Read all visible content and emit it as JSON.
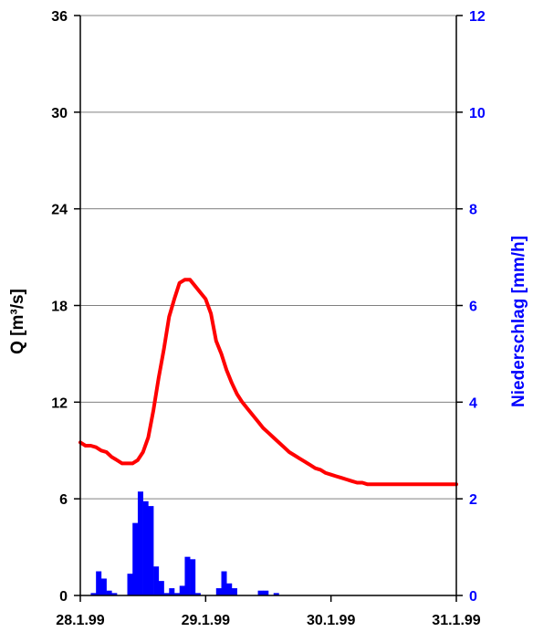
{
  "chart_data": {
    "type": "line",
    "title": "",
    "xlabel": "",
    "ylabel_left": "Q [m³/s]",
    "ylabel_right": "Niederschlag [mm/h]",
    "xlim": [
      "1999-01-28",
      "1999-01-31"
    ],
    "ylim_left": [
      0,
      36
    ],
    "ylim_right": [
      0,
      12
    ],
    "x_tick_labels": [
      "28.1.99",
      "29.1.99",
      "30.1.99",
      "31.1.99"
    ],
    "y_left_tick_labels": [
      "0",
      "6",
      "12",
      "18",
      "24",
      "30",
      "36"
    ],
    "y_right_tick_labels": [
      "0",
      "2",
      "4",
      "6",
      "8",
      "10",
      "12"
    ],
    "grid": "horizontal",
    "colors": {
      "discharge": "#ff0000",
      "precipitation": "#0000ff",
      "right_axis_text": "#0000ff",
      "axis": "#000000",
      "grid": "#808080"
    },
    "series": [
      {
        "axis": "left",
        "kind": "line",
        "x": [
          "1999-01-28 00:00",
          "1999-01-28 01:00",
          "1999-01-28 02:00",
          "1999-01-28 03:00",
          "1999-01-28 04:00",
          "1999-01-28 05:00",
          "1999-01-28 06:00",
          "1999-01-28 07:00",
          "1999-01-28 08:00",
          "1999-01-28 09:00",
          "1999-01-28 10:00",
          "1999-01-28 11:00",
          "1999-01-28 12:00",
          "1999-01-28 13:00",
          "1999-01-28 14:00",
          "1999-01-28 15:00",
          "1999-01-28 16:00",
          "1999-01-28 17:00",
          "1999-01-28 18:00",
          "1999-01-28 19:00",
          "1999-01-28 20:00",
          "1999-01-28 21:00",
          "1999-01-28 22:00",
          "1999-01-28 23:00",
          "1999-01-29 00:00",
          "1999-01-29 01:00",
          "1999-01-29 02:00",
          "1999-01-29 03:00",
          "1999-01-29 04:00",
          "1999-01-29 05:00",
          "1999-01-29 06:00",
          "1999-01-29 07:00",
          "1999-01-29 08:00",
          "1999-01-29 09:00",
          "1999-01-29 10:00",
          "1999-01-29 11:00",
          "1999-01-29 12:00",
          "1999-01-29 13:00",
          "1999-01-29 14:00",
          "1999-01-29 15:00",
          "1999-01-29 16:00",
          "1999-01-29 17:00",
          "1999-01-29 18:00",
          "1999-01-29 19:00",
          "1999-01-29 20:00",
          "1999-01-29 21:00",
          "1999-01-29 22:00",
          "1999-01-29 23:00",
          "1999-01-30 00:00",
          "1999-01-30 01:00",
          "1999-01-30 02:00",
          "1999-01-30 03:00",
          "1999-01-30 04:00",
          "1999-01-30 05:00",
          "1999-01-30 06:00",
          "1999-01-30 07:00",
          "1999-01-30 08:00",
          "1999-01-30 09:00",
          "1999-01-30 10:00",
          "1999-01-30 11:00",
          "1999-01-30 12:00",
          "1999-01-30 13:00",
          "1999-01-30 14:00",
          "1999-01-30 15:00",
          "1999-01-30 16:00",
          "1999-01-30 17:00",
          "1999-01-30 18:00",
          "1999-01-30 19:00",
          "1999-01-30 20:00",
          "1999-01-30 21:00",
          "1999-01-30 22:00",
          "1999-01-30 23:00",
          "1999-01-31 00:00"
        ],
        "y": [
          9.5,
          9.3,
          9.3,
          9.2,
          9.0,
          8.9,
          8.6,
          8.4,
          8.2,
          8.2,
          8.2,
          8.4,
          8.9,
          9.8,
          11.5,
          13.5,
          15.3,
          17.3,
          18.4,
          19.4,
          19.6,
          19.6,
          19.2,
          18.8,
          18.4,
          17.5,
          15.8,
          15.0,
          14.0,
          13.2,
          12.5,
          12.0,
          11.6,
          11.2,
          10.8,
          10.4,
          10.1,
          9.8,
          9.5,
          9.2,
          8.9,
          8.7,
          8.5,
          8.3,
          8.1,
          7.9,
          7.8,
          7.6,
          7.5,
          7.4,
          7.3,
          7.2,
          7.1,
          7.0,
          7.0,
          6.9,
          6.9,
          6.9,
          6.9,
          6.9,
          6.9,
          6.9,
          6.9,
          6.9,
          6.9,
          6.9,
          6.9,
          6.9,
          6.9,
          6.9,
          6.9,
          6.9,
          6.9
        ]
      },
      {
        "axis": "right",
        "kind": "bar",
        "x": [
          "1999-01-28 02:00",
          "1999-01-28 03:00",
          "1999-01-28 04:00",
          "1999-01-28 05:00",
          "1999-01-28 06:00",
          "1999-01-28 07:00",
          "1999-01-28 08:00",
          "1999-01-28 09:00",
          "1999-01-28 10:00",
          "1999-01-28 11:00",
          "1999-01-28 12:00",
          "1999-01-28 13:00",
          "1999-01-28 14:00",
          "1999-01-28 15:00",
          "1999-01-28 16:00",
          "1999-01-28 17:00",
          "1999-01-28 18:00",
          "1999-01-28 19:00",
          "1999-01-28 20:00",
          "1999-01-28 21:00",
          "1999-01-28 22:00",
          "1999-01-28 23:00",
          "1999-01-29 00:00",
          "1999-01-29 01:00",
          "1999-01-29 02:00",
          "1999-01-29 03:00",
          "1999-01-29 04:00",
          "1999-01-29 05:00",
          "1999-01-29 06:00",
          "1999-01-29 07:00",
          "1999-01-29 08:00",
          "1999-01-29 09:00",
          "1999-01-29 10:00",
          "1999-01-29 11:00",
          "1999-01-29 12:00",
          "1999-01-29 13:00"
        ],
        "y": [
          0.05,
          0.5,
          0.35,
          0.1,
          0.05,
          0.0,
          0.0,
          0.45,
          1.5,
          2.15,
          1.95,
          1.85,
          0.6,
          0.3,
          0.05,
          0.15,
          0.05,
          0.2,
          0.8,
          0.75,
          0.05,
          0.0,
          0.0,
          0.0,
          0.15,
          0.5,
          0.25,
          0.15,
          0.0,
          0.0,
          0.0,
          0.0,
          0.1,
          0.1,
          0.0,
          0.05
        ]
      }
    ]
  }
}
